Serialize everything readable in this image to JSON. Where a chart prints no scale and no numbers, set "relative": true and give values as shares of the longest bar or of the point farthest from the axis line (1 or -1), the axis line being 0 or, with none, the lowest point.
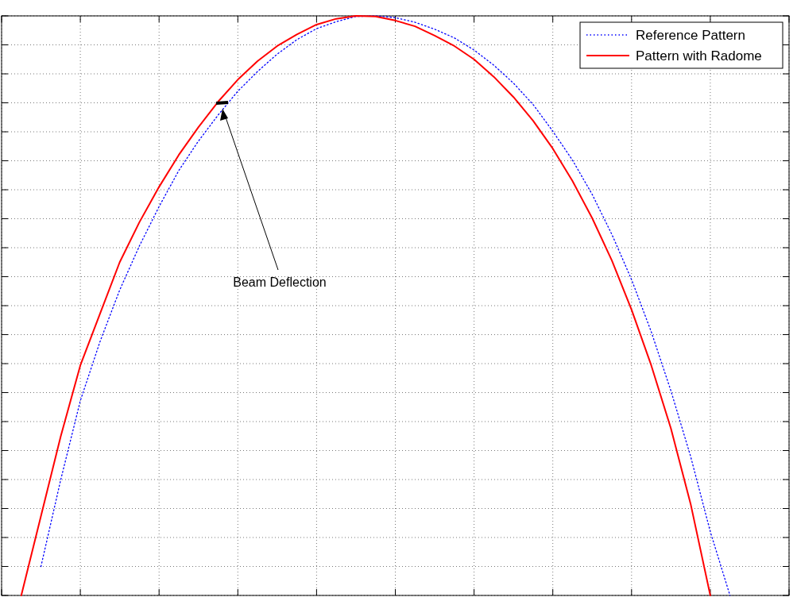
{
  "chart_data": {
    "type": "line",
    "relative": true,
    "grid": true,
    "legend": "top right",
    "categories": [
      null,
      null,
      null,
      null,
      null,
      null,
      null,
      null,
      null,
      null,
      null,
      null,
      null,
      null,
      null,
      null,
      null,
      null,
      null,
      null,
      null,
      null,
      null,
      null,
      null,
      null,
      null,
      null,
      null,
      null,
      null,
      null,
      null,
      null,
      null,
      null,
      null,
      null,
      null,
      null,
      null
    ],
    "series": [
      {
        "name": "Reference Pattern",
        "color": "#0000ff",
        "line_style": "dotted",
        "values": [
          null,
          null,
          0.05,
          0.199,
          0.336,
          0.438,
          0.527,
          0.603,
          0.671,
          0.733,
          0.784,
          0.829,
          0.87,
          0.904,
          0.934,
          0.959,
          0.978,
          0.99,
          0.999,
          1,
          0.997,
          0.989,
          0.977,
          0.962,
          0.941,
          0.915,
          0.884,
          0.847,
          0.801,
          0.751,
          0.692,
          0.623,
          0.545,
          0.455,
          0.353,
          0.24,
          0.11,
          0,
          null,
          null,
          null
        ]
      },
      {
        "name": "Pattern with Radome",
        "color": "#ff0000",
        "line_style": "solid",
        "values": [
          null,
          0,
          0.137,
          0.274,
          0.397,
          0.486,
          0.575,
          0.644,
          0.705,
          0.76,
          0.808,
          0.852,
          0.89,
          0.922,
          0.948,
          0.968,
          0.985,
          0.995,
          1,
          0.999,
          0.992,
          0.982,
          0.966,
          0.948,
          0.925,
          0.895,
          0.86,
          0.819,
          0.771,
          0.715,
          0.651,
          0.578,
          0.493,
          0.397,
          0.288,
          0.158,
          0,
          null,
          null,
          null,
          null
        ]
      }
    ],
    "annotations": [
      "Beam Deflection"
    ]
  }
}
